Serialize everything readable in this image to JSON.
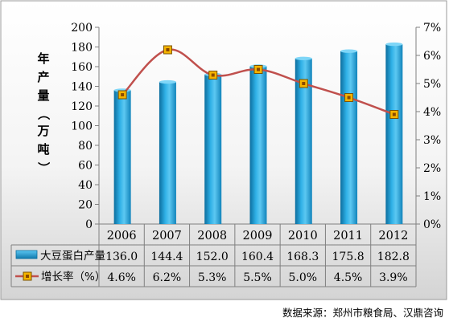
{
  "chart_data": {
    "type": "bar",
    "categories": [
      "2006",
      "2007",
      "2008",
      "2009",
      "2010",
      "2011",
      "2012"
    ],
    "ylabel": "年产量（万吨）",
    "ylim": [
      0,
      200
    ],
    "y_ticks": [
      "0",
      "20",
      "40",
      "60",
      "80",
      "100",
      "120",
      "140",
      "160",
      "180",
      "200"
    ],
    "y2lim": [
      0,
      7
    ],
    "y2_ticks": [
      "0%",
      "1%",
      "2%",
      "3%",
      "4%",
      "5%",
      "6%",
      "7%"
    ],
    "series": [
      {
        "name": "大豆蛋白产量",
        "type": "bar",
        "axis": "left",
        "values": [
          136.0,
          144.4,
          152.0,
          160.4,
          168.3,
          175.8,
          182.8
        ],
        "labels": [
          "136.0",
          "144.4",
          "152.0",
          "160.4",
          "168.3",
          "175.8",
          "182.8"
        ],
        "color": "#29a3dc"
      },
      {
        "name": "增长率（%）",
        "type": "line",
        "axis": "right",
        "values": [
          4.6,
          6.2,
          5.3,
          5.5,
          5.0,
          4.5,
          3.9
        ],
        "labels": [
          "4.6%",
          "6.2%",
          "5.3%",
          "5.5%",
          "5.0%",
          "4.5%",
          "3.9%"
        ],
        "color": "#c0504d",
        "marker_color": "#f5b400"
      }
    ],
    "grid": false,
    "legend": "data-table"
  },
  "source_text": "数据来源：郑州市粮食局、汉鼎咨询",
  "colors": {
    "background_gradient_top": "#ffffff",
    "background_gradient_bottom": "#dcdcdc",
    "axis": "#808080"
  }
}
